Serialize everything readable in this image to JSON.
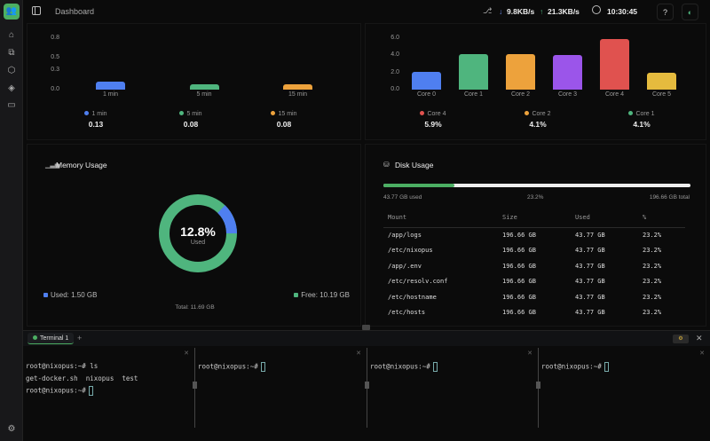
{
  "header": {
    "breadcrumb": "Dashboard",
    "download": "9.8KB/s",
    "upload": "21.3KB/s",
    "time": "10:30:45"
  },
  "sidebar": {
    "items": [
      "home-icon",
      "extensions-icon",
      "package-icon",
      "layers-icon",
      "folder-icon"
    ],
    "settings": "gear-icon"
  },
  "chart_data": [
    {
      "type": "bar",
      "categories": [
        "1 min",
        "5 min",
        "15 min"
      ],
      "values": [
        0.13,
        0.08,
        0.08
      ],
      "yticks": [
        "0.0",
        "0.3",
        "0.5",
        "0.8"
      ],
      "ylim": [
        0,
        0.8
      ],
      "colors": [
        "#4f7ff0",
        "#4fb57e",
        "#eda23c"
      ],
      "legend": [
        {
          "label": "1 min",
          "value": "0.13",
          "color": "#4f7ff0"
        },
        {
          "label": "5 min",
          "value": "0.08",
          "color": "#4fb57e"
        },
        {
          "label": "15 min",
          "value": "0.08",
          "color": "#eda23c"
        }
      ]
    },
    {
      "type": "bar",
      "categories": [
        "Core 0",
        "Core 1",
        "Core 2",
        "Core 3",
        "Core 4",
        "Core 5"
      ],
      "values": [
        2.1,
        4.1,
        4.1,
        4.0,
        5.9,
        2.0
      ],
      "yticks": [
        "0.0",
        "2.0",
        "4.0",
        "6.0"
      ],
      "ylim": [
        0,
        6
      ],
      "colors": [
        "#4f7ff0",
        "#4fb57e",
        "#eda23c",
        "#9b55ea",
        "#e0524f",
        "#e5bb3e"
      ],
      "legend": [
        {
          "label": "Core 4",
          "value": "5.9%",
          "color": "#e0524f"
        },
        {
          "label": "Core 2",
          "value": "4.1%",
          "color": "#eda23c"
        },
        {
          "label": "Core 1",
          "value": "4.1%",
          "color": "#4fb57e"
        }
      ]
    },
    {
      "type": "pie",
      "title": "Memory Usage",
      "center_value": "12.8%",
      "center_label": "Used",
      "used_percent": 12.8,
      "used_label": "Used: 1.50 GB",
      "free_label": "Free: 10.19 GB",
      "total_label": "Total: 11.69 GB",
      "colors": {
        "used": "#4f7ff0",
        "free": "#4fb57e"
      }
    }
  ],
  "disk": {
    "title": "Disk Usage",
    "used": "43.77 GB used",
    "percent": "23.2%",
    "percent_value": 23.2,
    "total": "196.66 GB total",
    "columns": [
      "Mount",
      "Size",
      "Used",
      "%"
    ],
    "rows": [
      [
        "/app/logs",
        "196.66 GB",
        "43.77 GB",
        "23.2%"
      ],
      [
        "/etc/nixopus",
        "196.66 GB",
        "43.77 GB",
        "23.2%"
      ],
      [
        "/app/.env",
        "196.66 GB",
        "43.77 GB",
        "23.2%"
      ],
      [
        "/etc/resolv.conf",
        "196.66 GB",
        "43.77 GB",
        "23.2%"
      ],
      [
        "/etc/hostname",
        "196.66 GB",
        "43.77 GB",
        "23.2%"
      ],
      [
        "/etc/hosts",
        "196.66 GB",
        "43.77 GB",
        "23.2%"
      ]
    ]
  },
  "terminal": {
    "tab": "Terminal 1",
    "add": "+",
    "close": "✕",
    "panes": [
      {
        "lines": [
          "root@nixopus:~# ls",
          "get-docker.sh  nixopus  test",
          "root@nixopus:~#"
        ]
      },
      {
        "lines": [
          "root@nixopus:~#"
        ]
      },
      {
        "lines": [
          "root@nixopus:~#"
        ]
      },
      {
        "lines": [
          "root@nixopus:~#"
        ]
      }
    ]
  }
}
